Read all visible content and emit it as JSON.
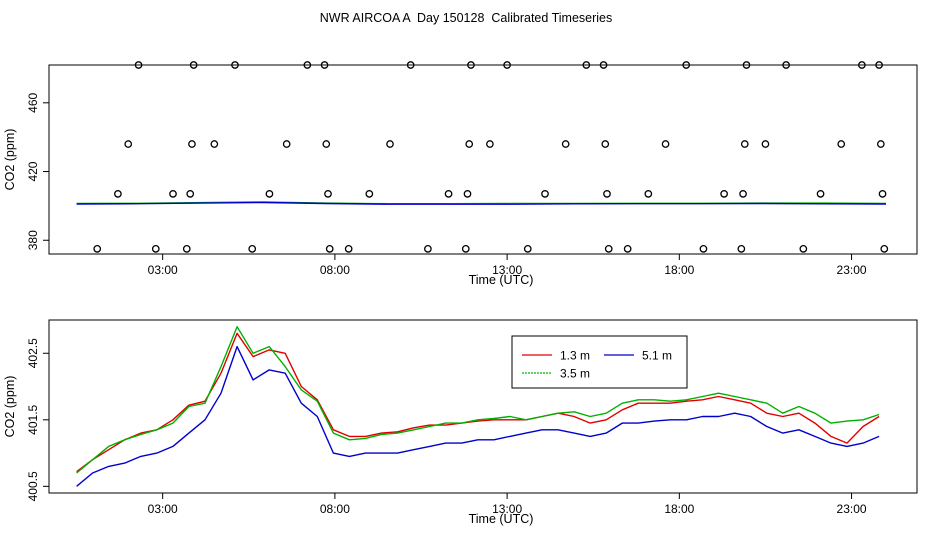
{
  "title": "NWR AIRCOA A  Day 150128  Calibrated Timeseries",
  "chart_data": [
    {
      "type": "scatter",
      "xlabel": "Time (UTC)",
      "ylabel": "CO2 (ppm)",
      "xlim": [
        -0.3,
        24.9
      ],
      "ylim": [
        372,
        482
      ],
      "xticks": [
        {
          "v": 3,
          "label": "03:00"
        },
        {
          "v": 8,
          "label": "08:00"
        },
        {
          "v": 13,
          "label": "13:00"
        },
        {
          "v": 18,
          "label": "18:00"
        },
        {
          "v": 23,
          "label": "23:00"
        }
      ],
      "yticks": [
        {
          "v": 380,
          "label": "380"
        },
        {
          "v": 420,
          "label": "420"
        },
        {
          "v": 460,
          "label": "460"
        }
      ],
      "calibration_points": [
        {
          "x": 1.1,
          "y": 375
        },
        {
          "x": 1.7,
          "y": 407
        },
        {
          "x": 2.0,
          "y": 436
        },
        {
          "x": 2.3,
          "y": 482
        },
        {
          "x": 2.8,
          "y": 375
        },
        {
          "x": 3.3,
          "y": 407
        },
        {
          "x": 3.7,
          "y": 375
        },
        {
          "x": 3.8,
          "y": 407
        },
        {
          "x": 3.85,
          "y": 436
        },
        {
          "x": 3.9,
          "y": 482
        },
        {
          "x": 4.5,
          "y": 436
        },
        {
          "x": 5.1,
          "y": 482
        },
        {
          "x": 5.6,
          "y": 375
        },
        {
          "x": 6.1,
          "y": 407
        },
        {
          "x": 6.6,
          "y": 436
        },
        {
          "x": 7.2,
          "y": 482
        },
        {
          "x": 7.7,
          "y": 482
        },
        {
          "x": 7.75,
          "y": 436
        },
        {
          "x": 7.8,
          "y": 407
        },
        {
          "x": 7.85,
          "y": 375
        },
        {
          "x": 8.4,
          "y": 375
        },
        {
          "x": 9.0,
          "y": 407
        },
        {
          "x": 9.6,
          "y": 436
        },
        {
          "x": 10.2,
          "y": 482
        },
        {
          "x": 10.7,
          "y": 375
        },
        {
          "x": 11.3,
          "y": 407
        },
        {
          "x": 11.8,
          "y": 375
        },
        {
          "x": 11.85,
          "y": 407
        },
        {
          "x": 11.9,
          "y": 436
        },
        {
          "x": 11.95,
          "y": 482
        },
        {
          "x": 12.5,
          "y": 436
        },
        {
          "x": 13.0,
          "y": 482
        },
        {
          "x": 13.6,
          "y": 375
        },
        {
          "x": 14.1,
          "y": 407
        },
        {
          "x": 14.7,
          "y": 436
        },
        {
          "x": 15.3,
          "y": 482
        },
        {
          "x": 15.8,
          "y": 482
        },
        {
          "x": 15.85,
          "y": 436
        },
        {
          "x": 15.9,
          "y": 407
        },
        {
          "x": 15.95,
          "y": 375
        },
        {
          "x": 16.5,
          "y": 375
        },
        {
          "x": 17.1,
          "y": 407
        },
        {
          "x": 17.6,
          "y": 436
        },
        {
          "x": 18.2,
          "y": 482
        },
        {
          "x": 18.7,
          "y": 375
        },
        {
          "x": 19.3,
          "y": 407
        },
        {
          "x": 19.8,
          "y": 375
        },
        {
          "x": 19.85,
          "y": 407
        },
        {
          "x": 19.9,
          "y": 436
        },
        {
          "x": 19.95,
          "y": 482
        },
        {
          "x": 20.5,
          "y": 436
        },
        {
          "x": 21.1,
          "y": 482
        },
        {
          "x": 21.6,
          "y": 375
        },
        {
          "x": 22.1,
          "y": 407
        },
        {
          "x": 22.7,
          "y": 436
        },
        {
          "x": 23.3,
          "y": 482
        },
        {
          "x": 23.8,
          "y": 482
        },
        {
          "x": 23.85,
          "y": 436
        },
        {
          "x": 23.9,
          "y": 407
        },
        {
          "x": 23.95,
          "y": 375
        }
      ],
      "series": [
        {
          "color": "#00b000",
          "values": [
            401.4,
            401.5,
            401.9,
            402.3,
            401.6,
            401.3,
            401.3,
            401.4,
            401.4,
            401.5,
            401.5,
            401.6,
            401.6,
            401.4
          ]
        },
        {
          "color": "#0000cc",
          "values": [
            401.1,
            401.3,
            401.6,
            402.0,
            401.4,
            401.0,
            401.0,
            401.0,
            401.2,
            401.3,
            401.3,
            401.4,
            401.2,
            401.1
          ]
        }
      ],
      "series_x_range": [
        0.5,
        24.0
      ]
    },
    {
      "type": "line",
      "xlabel": "Time (UTC)",
      "ylabel": "CO2 (ppm)",
      "xlim": [
        -0.3,
        24.9
      ],
      "ylim": [
        400.4,
        403.0
      ],
      "xticks": [
        {
          "v": 3,
          "label": "03:00"
        },
        {
          "v": 8,
          "label": "08:00"
        },
        {
          "v": 13,
          "label": "13:00"
        },
        {
          "v": 18,
          "label": "18:00"
        },
        {
          "v": 23,
          "label": "23:00"
        }
      ],
      "yticks": [
        {
          "v": 400.5,
          "label": "400.5"
        },
        {
          "v": 401.5,
          "label": "401.5"
        },
        {
          "v": 402.5,
          "label": "402.5"
        }
      ],
      "legend_position": "top-right",
      "series_x_range": [
        0.5,
        23.8
      ],
      "series": [
        {
          "name": "1.3 m",
          "color": "#e00000",
          "values": [
            400.72,
            400.9,
            401.05,
            401.2,
            401.3,
            401.35,
            401.5,
            401.72,
            401.78,
            402.2,
            402.8,
            402.45,
            402.55,
            402.5,
            402.0,
            401.8,
            401.35,
            401.25,
            401.25,
            401.3,
            401.32,
            401.38,
            401.42,
            401.42,
            401.45,
            401.48,
            401.5,
            401.5,
            401.5,
            401.55,
            401.6,
            401.55,
            401.45,
            401.5,
            401.65,
            401.75,
            401.75,
            401.75,
            401.78,
            401.8,
            401.85,
            401.8,
            401.75,
            401.6,
            401.55,
            401.6,
            401.45,
            401.25,
            401.15,
            401.4,
            401.55
          ]
        },
        {
          "name": "3.5 m",
          "color": "#00b000",
          "values": [
            400.7,
            400.9,
            401.1,
            401.2,
            401.28,
            401.35,
            401.45,
            401.7,
            401.75,
            402.3,
            402.9,
            402.5,
            402.6,
            402.3,
            401.95,
            401.78,
            401.3,
            401.2,
            401.22,
            401.28,
            401.3,
            401.35,
            401.4,
            401.45,
            401.45,
            401.5,
            401.52,
            401.55,
            401.5,
            401.55,
            401.6,
            401.62,
            401.55,
            401.6,
            401.75,
            401.8,
            401.8,
            401.78,
            401.8,
            401.85,
            401.9,
            401.85,
            401.8,
            401.75,
            401.6,
            401.7,
            401.6,
            401.45,
            401.48,
            401.5,
            401.58
          ]
        },
        {
          "name": "5.1 m",
          "color": "#0000cc",
          "values": [
            400.5,
            400.7,
            400.8,
            400.85,
            400.95,
            401.0,
            401.1,
            401.3,
            401.5,
            401.9,
            402.6,
            402.1,
            402.25,
            402.2,
            401.75,
            401.55,
            401.0,
            400.95,
            401.0,
            401.0,
            401.0,
            401.05,
            401.1,
            401.15,
            401.15,
            401.2,
            401.2,
            401.25,
            401.3,
            401.35,
            401.35,
            401.3,
            401.25,
            401.3,
            401.45,
            401.45,
            401.48,
            401.5,
            401.5,
            401.55,
            401.55,
            401.6,
            401.55,
            401.4,
            401.3,
            401.35,
            401.25,
            401.15,
            401.1,
            401.15,
            401.25
          ]
        }
      ]
    }
  ]
}
